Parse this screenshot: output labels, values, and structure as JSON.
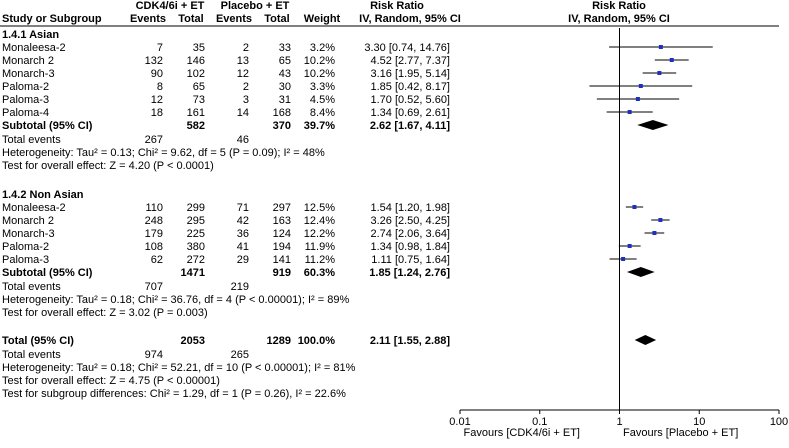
{
  "headers": {
    "study": "Study or Subgroup",
    "group1": "CDK4/6i + ET",
    "group2": "Placebo + ET",
    "events": "Events",
    "total": "Total",
    "weight": "Weight",
    "rr_title": "Risk Ratio",
    "rr_method": "IV, Random, 95% CI",
    "plot_title": "Risk Ratio",
    "plot_method": "IV, Random, 95% CI"
  },
  "colors": {
    "marker": "#1f2fbf",
    "diamond": "#000000",
    "line": "#000000"
  },
  "chart_data": {
    "type": "forest",
    "x_scale": "log",
    "xlim": [
      0.01,
      100
    ],
    "x_ticks": [
      "0.01",
      "0.1",
      "1",
      "10",
      "100"
    ],
    "x_tick_values": [
      0.01,
      0.1,
      1,
      10,
      100
    ],
    "null_value": 1,
    "favours_left": "Favours [CDK4/6i + ET]",
    "favours_right": "Favours [Placebo + ET]",
    "subgroups": [
      {
        "title": "1.4.1 Asian",
        "studies": [
          {
            "name": "Monaleesa-2",
            "e1": "7",
            "t1": "35",
            "e2": "2",
            "t2": "33",
            "weight": "3.2%",
            "ci": "3.30 [0.74, 14.76]",
            "rr": 3.3,
            "lo": 0.74,
            "hi": 14.76
          },
          {
            "name": "Monarch 2",
            "e1": "132",
            "t1": "146",
            "e2": "13",
            "t2": "65",
            "weight": "10.2%",
            "ci": "4.52 [2.77, 7.37]",
            "rr": 4.52,
            "lo": 2.77,
            "hi": 7.37
          },
          {
            "name": "Monarch-3",
            "e1": "90",
            "t1": "102",
            "e2": "12",
            "t2": "43",
            "weight": "10.2%",
            "ci": "3.16 [1.95, 5.14]",
            "rr": 3.16,
            "lo": 1.95,
            "hi": 5.14
          },
          {
            "name": "Paloma-2",
            "e1": "8",
            "t1": "65",
            "e2": "2",
            "t2": "30",
            "weight": "3.3%",
            "ci": "1.85 [0.42, 8.17]",
            "rr": 1.85,
            "lo": 0.42,
            "hi": 8.17
          },
          {
            "name": "Paloma-3",
            "e1": "12",
            "t1": "73",
            "e2": "3",
            "t2": "31",
            "weight": "4.5%",
            "ci": "1.70 [0.52, 5.60]",
            "rr": 1.7,
            "lo": 0.52,
            "hi": 5.6
          },
          {
            "name": "Paloma-4",
            "e1": "18",
            "t1": "161",
            "e2": "14",
            "t2": "168",
            "weight": "8.4%",
            "ci": "1.34 [0.69, 2.61]",
            "rr": 1.34,
            "lo": 0.69,
            "hi": 2.61
          }
        ],
        "subtotal": {
          "label": "Subtotal (95% CI)",
          "t1": "582",
          "t2": "370",
          "weight": "39.7%",
          "ci": "2.62 [1.67, 4.11]",
          "rr": 2.62,
          "lo": 1.67,
          "hi": 4.11
        },
        "total_events": {
          "label": "Total events",
          "e1": "267",
          "e2": "46"
        },
        "heterogeneity": "Heterogeneity: Tau² = 0.13; Chi² = 9.62, df = 5 (P = 0.09); I² = 48%",
        "overall_effect": "Test for overall effect: Z = 4.20 (P < 0.0001)"
      },
      {
        "title": "1.4.2 Non Asian",
        "studies": [
          {
            "name": "Monaleesa-2",
            "e1": "110",
            "t1": "299",
            "e2": "71",
            "t2": "297",
            "weight": "12.5%",
            "ci": "1.54 [1.20, 1.98]",
            "rr": 1.54,
            "lo": 1.2,
            "hi": 1.98
          },
          {
            "name": "Monarch 2",
            "e1": "248",
            "t1": "295",
            "e2": "42",
            "t2": "163",
            "weight": "12.4%",
            "ci": "3.26 [2.50, 4.25]",
            "rr": 3.26,
            "lo": 2.5,
            "hi": 4.25
          },
          {
            "name": "Monarch-3",
            "e1": "179",
            "t1": "225",
            "e2": "36",
            "t2": "124",
            "weight": "12.2%",
            "ci": "2.74 [2.06, 3.64]",
            "rr": 2.74,
            "lo": 2.06,
            "hi": 3.64
          },
          {
            "name": "Paloma-2",
            "e1": "108",
            "t1": "380",
            "e2": "41",
            "t2": "194",
            "weight": "11.9%",
            "ci": "1.34 [0.98, 1.84]",
            "rr": 1.34,
            "lo": 0.98,
            "hi": 1.84
          },
          {
            "name": "Paloma-3",
            "e1": "62",
            "t1": "272",
            "e2": "29",
            "t2": "141",
            "weight": "11.2%",
            "ci": "1.11 [0.75, 1.64]",
            "rr": 1.11,
            "lo": 0.75,
            "hi": 1.64
          }
        ],
        "subtotal": {
          "label": "Subtotal (95% CI)",
          "t1": "1471",
          "t2": "919",
          "weight": "60.3%",
          "ci": "1.85 [1.24, 2.76]",
          "rr": 1.85,
          "lo": 1.24,
          "hi": 2.76
        },
        "total_events": {
          "label": "Total events",
          "e1": "707",
          "e2": "219"
        },
        "heterogeneity": "Heterogeneity: Tau² = 0.18; Chi² = 36.76, df = 4 (P < 0.00001); I² = 89%",
        "overall_effect": "Test for overall effect: Z = 3.02 (P = 0.003)"
      }
    ],
    "total": {
      "label": "Total (95% CI)",
      "t1": "2053",
      "t2": "1289",
      "weight": "100.0%",
      "ci": "2.11 [1.55, 2.88]",
      "rr": 2.11,
      "lo": 1.55,
      "hi": 2.88
    },
    "total_events": {
      "label": "Total events",
      "e1": "974",
      "e2": "265"
    },
    "heterogeneity": "Heterogeneity: Tau² = 0.18; Chi² = 52.21, df = 10 (P < 0.00001); I² = 81%",
    "overall_effect": "Test for overall effect: Z = 4.75 (P < 0.00001)",
    "subgroup_differences": "Test for subgroup differences: Chi² = 1.29, df = 1 (P = 0.26), I² = 22.6%"
  }
}
